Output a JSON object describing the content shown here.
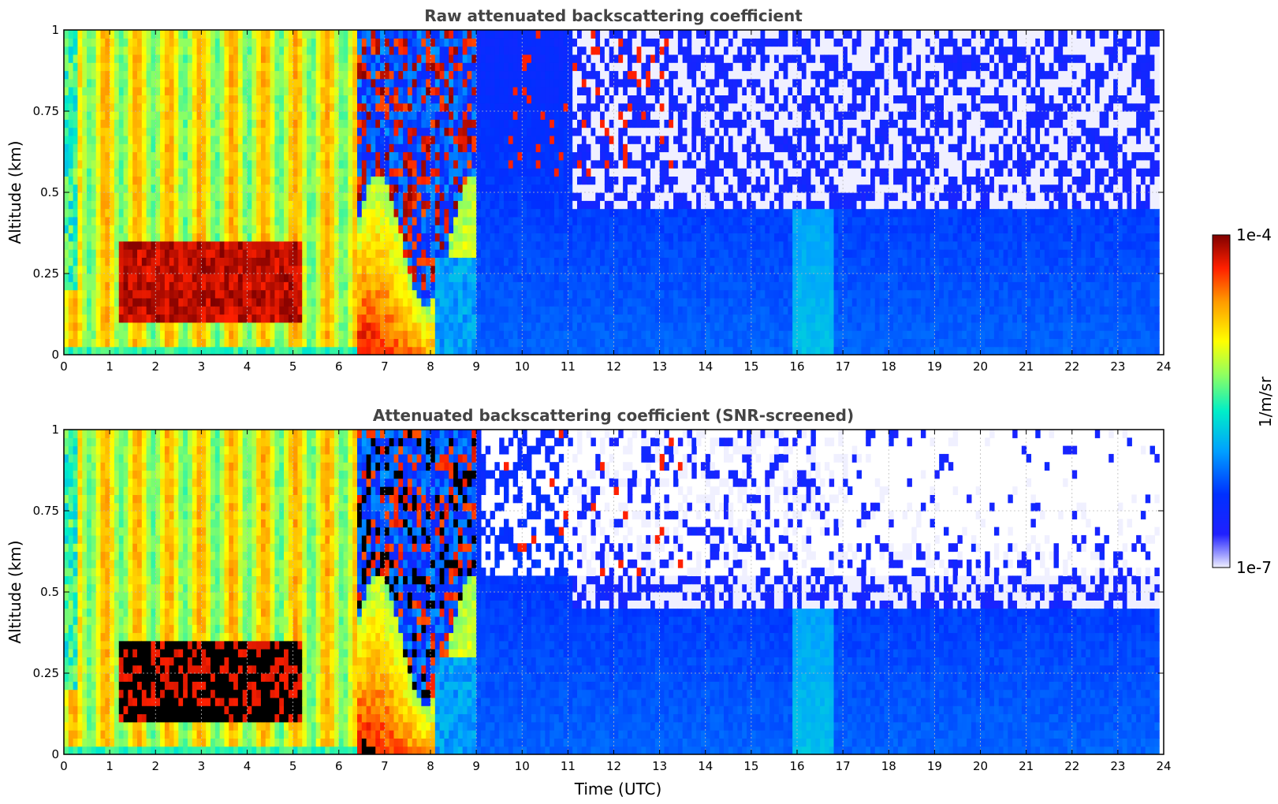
{
  "chart_data": [
    {
      "type": "heatmap",
      "title": "Raw attenuated backscattering coefficient",
      "xlabel": "",
      "ylabel": "Altitude (km)",
      "xlim": [
        0,
        24
      ],
      "ylim": [
        0,
        1
      ],
      "x_ticks": [
        "0",
        "1",
        "2",
        "3",
        "4",
        "5",
        "6",
        "7",
        "8",
        "9",
        "10",
        "11",
        "12",
        "13",
        "14",
        "15",
        "16",
        "17",
        "18",
        "19",
        "20",
        "21",
        "22",
        "23",
        "24"
      ],
      "y_ticks": [
        "0",
        "0.25",
        "0.5",
        "0.75",
        "1"
      ],
      "grid": true,
      "screened": false,
      "colorscale": "jet, log10 1e-7 to 1e-4"
    },
    {
      "type": "heatmap",
      "title": "Attenuated backscattering coefficient (SNR-screened)",
      "xlabel": "Time (UTC)",
      "ylabel": "Altitude (km)",
      "xlim": [
        0,
        24
      ],
      "ylim": [
        0,
        1
      ],
      "x_ticks": [
        "0",
        "1",
        "2",
        "3",
        "4",
        "5",
        "6",
        "7",
        "8",
        "9",
        "10",
        "11",
        "12",
        "13",
        "14",
        "15",
        "16",
        "17",
        "18",
        "19",
        "20",
        "21",
        "22",
        "23",
        "24"
      ],
      "y_ticks": [
        "0",
        "0.25",
        "0.5",
        "0.75",
        "1"
      ],
      "grid": true,
      "screened": true,
      "colorscale": "jet, log10 1e-7 to 1e-4"
    }
  ],
  "colorbar": {
    "label": "1/m/sr",
    "max_label": "1e-4",
    "min_label": "1e-7",
    "min": 1e-07,
    "max": 0.0001,
    "scale": "log"
  }
}
